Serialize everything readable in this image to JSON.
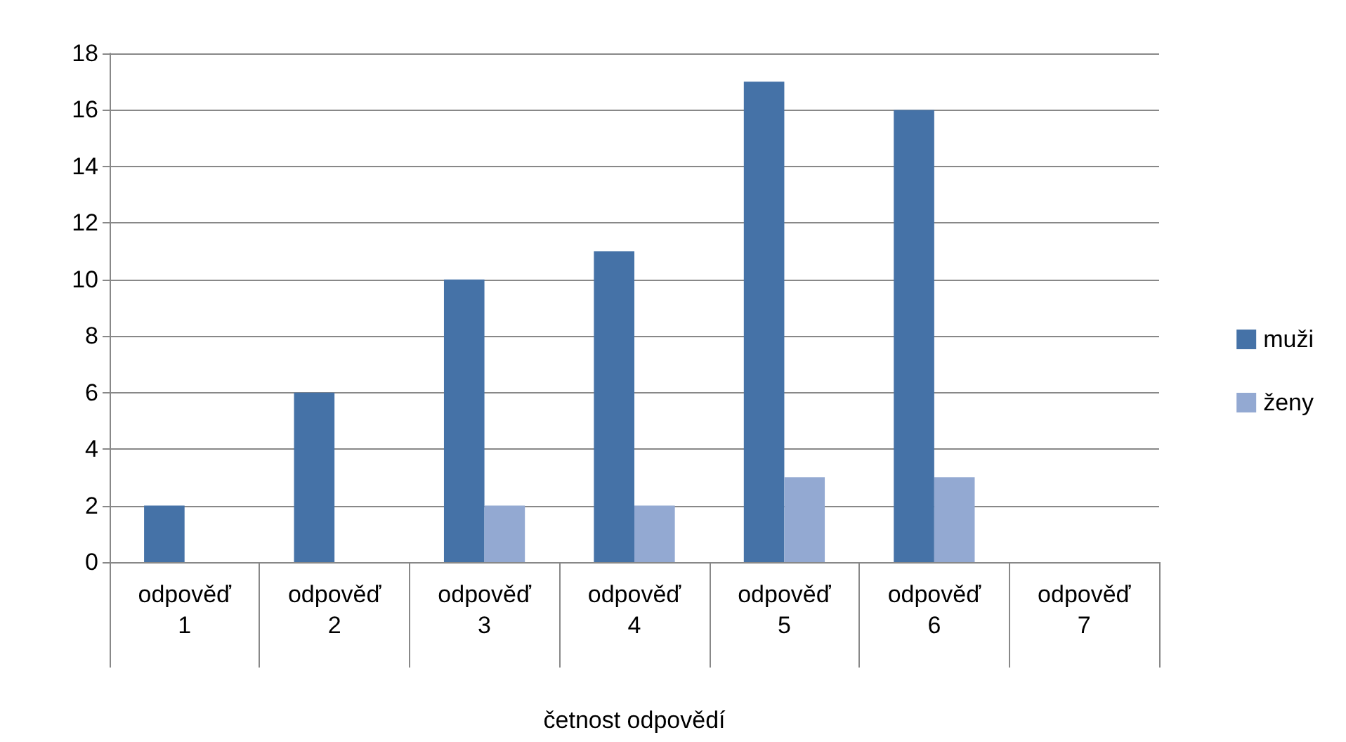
{
  "chart_data": {
    "type": "bar",
    "xlabel": "četnost odpovědí",
    "categories": [
      "odpověď 1",
      "odpověď 2",
      "odpověď 3",
      "odpověď 4",
      "odpověď 5",
      "odpověď 6",
      "odpověď 7"
    ],
    "series": [
      {
        "name": "muži",
        "color": "#4572a7",
        "values": [
          2,
          6,
          10,
          11,
          17,
          16,
          0
        ]
      },
      {
        "name": "ženy",
        "color": "#93a9d2",
        "values": [
          0,
          0,
          2,
          2,
          3,
          3,
          0
        ]
      }
    ],
    "ylim": [
      0,
      18
    ],
    "yticks": [
      0,
      2,
      4,
      6,
      8,
      10,
      12,
      14,
      16,
      18
    ],
    "grid": "y",
    "legend": "right"
  }
}
